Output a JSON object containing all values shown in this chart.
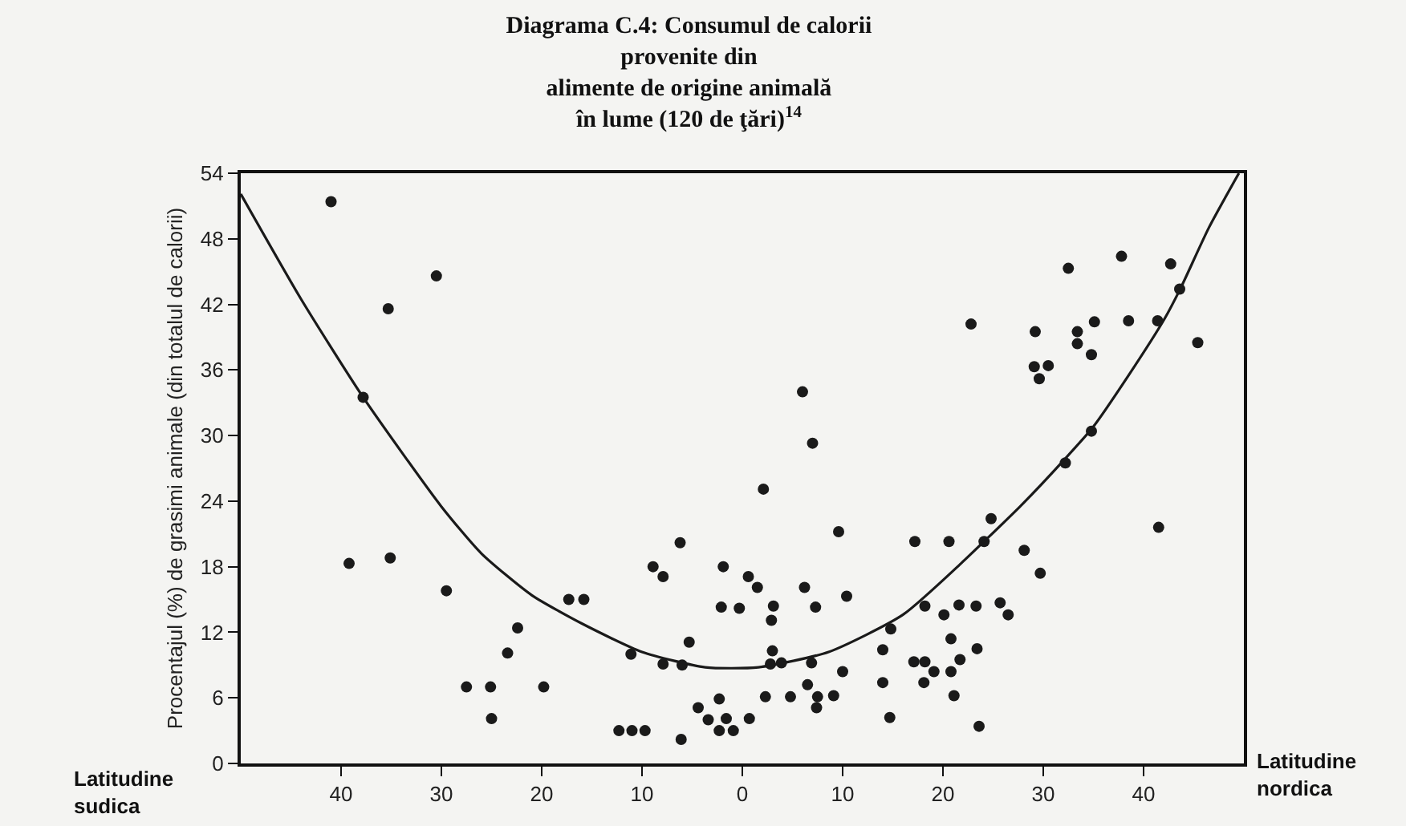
{
  "chart_data": {
    "type": "scatter",
    "title": "Diagrama C.4: Consumul de calorii\nprovenite din\nalimente de origine animală\nîn lume (120 de ţări)$^{14}$",
    "ylabel": "Procentajul (%) de grasimi animale (din totalul de calorii)",
    "annotations": [
      "Latitudine\nsudica",
      "Latitudine\nnordica"
    ],
    "xlim": [
      -50,
      50
    ],
    "xticks": [
      {
        "value": -40,
        "label": "40"
      },
      {
        "value": -30,
        "label": "30"
      },
      {
        "value": -20,
        "label": "20"
      },
      {
        "value": -10,
        "label": "10"
      },
      0,
      10,
      20,
      30,
      40
    ],
    "ylim": [
      0,
      54
    ],
    "yticks": [
      0,
      6,
      12,
      18,
      24,
      30,
      36,
      42,
      48,
      54
    ],
    "grid": false,
    "series": [
      {
        "marker": "circle",
        "color": "#1a1a1a",
        "x": [
          -41.0,
          -30.5,
          -35.3,
          -37.8,
          -39.2,
          -35.1,
          -29.5,
          -22.4,
          -23.4,
          -27.5,
          -25.1,
          -25.0,
          37.8,
          32.5,
          42.7,
          43.6,
          22.8,
          29.2,
          33.4,
          35.1,
          38.5,
          41.4,
          33.4,
          34.8,
          45.4,
          29.1,
          30.5,
          29.6,
          34.8,
          32.2,
          41.5,
          24.8,
          17.2,
          20.6,
          24.1,
          28.1,
          29.7,
          18.2,
          21.6,
          23.3,
          25.7,
          26.5,
          20.1,
          20.8,
          23.4,
          21.7,
          17.1,
          18.2,
          19.1,
          20.8,
          18.1,
          21.1,
          23.6,
          6.0,
          7.0,
          2.1,
          9.6,
          -6.2,
          -8.9,
          -7.9,
          -1.9,
          0.6,
          1.5,
          6.2,
          10.4,
          -17.3,
          -15.8,
          -2.1,
          -0.3,
          3.1,
          7.3,
          2.9,
          -19.8,
          -11.1,
          -5.3,
          -7.9,
          -6.0,
          3.0,
          2.8,
          3.9,
          6.9,
          14.8,
          14.0,
          10.0,
          14.0,
          6.5,
          2.3,
          4.8,
          7.5,
          9.1,
          7.4,
          -2.3,
          -4.4,
          -3.4,
          -1.6,
          0.7,
          -2.3,
          -0.9,
          -6.1,
          -12.3,
          -11.0,
          -9.7,
          14.7
        ],
        "values": [
          51.4,
          44.6,
          41.6,
          33.5,
          18.3,
          18.8,
          15.8,
          12.4,
          10.1,
          7.0,
          7.0,
          4.1,
          46.4,
          45.3,
          45.7,
          43.4,
          40.2,
          39.5,
          39.5,
          40.4,
          40.5,
          40.5,
          38.4,
          37.4,
          38.5,
          36.3,
          36.4,
          35.2,
          30.4,
          27.5,
          21.6,
          22.4,
          20.3,
          20.3,
          20.3,
          19.5,
          17.4,
          14.4,
          14.5,
          14.4,
          14.7,
          13.6,
          13.6,
          11.4,
          10.5,
          9.5,
          9.3,
          9.3,
          8.4,
          8.4,
          7.4,
          6.2,
          3.4,
          34.0,
          29.3,
          25.1,
          21.2,
          20.2,
          18.0,
          17.1,
          18.0,
          17.1,
          16.1,
          16.1,
          15.3,
          15.0,
          15.0,
          14.3,
          14.2,
          14.4,
          14.3,
          13.1,
          7.0,
          10.0,
          11.1,
          9.1,
          9.0,
          10.3,
          9.1,
          9.2,
          9.2,
          12.3,
          10.4,
          8.4,
          7.4,
          7.2,
          6.1,
          6.1,
          6.1,
          6.2,
          5.1,
          5.9,
          5.1,
          4.0,
          4.1,
          4.1,
          3.0,
          3.0,
          2.2,
          3.0,
          3.0,
          3.0,
          4.2
        ]
      },
      {
        "type": "line",
        "marker": "none",
        "color": "#1a1a1a",
        "x": [
          -50,
          -44,
          -37.8,
          -30,
          -26,
          -21,
          -16,
          -10,
          -3.7,
          1.6,
          8.6,
          16,
          21.8,
          24.2,
          28,
          31.9,
          34.9,
          38.5,
          42.1,
          43.7,
          46.5,
          49.5
        ],
        "values": [
          52.1,
          42.5,
          33.5,
          23.5,
          19.2,
          15.4,
          12.8,
          10.2,
          8.8,
          8.8,
          10.2,
          13.6,
          18.3,
          20.4,
          23.8,
          27.6,
          30.7,
          35.5,
          40.7,
          43.5,
          49,
          54
        ]
      }
    ]
  }
}
